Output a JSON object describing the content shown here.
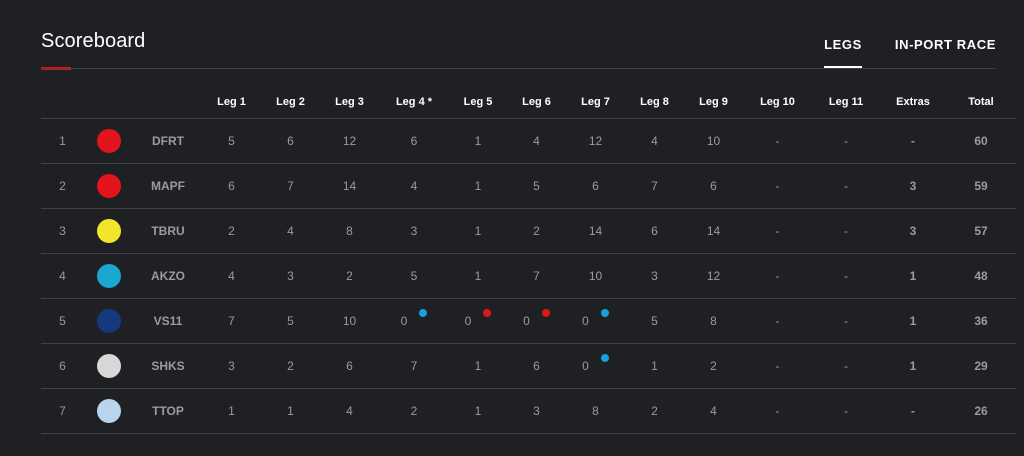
{
  "header": {
    "title": "Scoreboard",
    "tabs": [
      {
        "label": "LEGS",
        "active": true
      },
      {
        "label": "IN-PORT RACE",
        "active": false
      }
    ]
  },
  "columns": [
    "Leg 1",
    "Leg 2",
    "Leg 3",
    "Leg 4 *",
    "Leg 5",
    "Leg 6",
    "Leg 7",
    "Leg 8",
    "Leg 9",
    "Leg 10",
    "Leg 11",
    "Extras",
    "Total"
  ],
  "rows": [
    {
      "pos": "1",
      "team": "DFRT",
      "logo": "dongfeng-logo-icon",
      "legs": [
        "5",
        "6",
        "12",
        "6",
        "1",
        "4",
        "12",
        "4",
        "10",
        "-",
        "-"
      ],
      "dots": [
        null,
        null,
        null,
        null,
        null,
        null,
        null,
        null,
        null,
        null,
        null
      ],
      "extras": "-",
      "total": "60"
    },
    {
      "pos": "2",
      "team": "MAPF",
      "logo": "mapfre-logo-icon",
      "legs": [
        "6",
        "7",
        "14",
        "4",
        "1",
        "5",
        "6",
        "7",
        "6",
        "-",
        "-"
      ],
      "dots": [
        null,
        null,
        null,
        null,
        null,
        null,
        null,
        null,
        null,
        null,
        null
      ],
      "extras": "3",
      "total": "59"
    },
    {
      "pos": "3",
      "team": "TBRU",
      "logo": "brunel-logo-icon",
      "legs": [
        "2",
        "4",
        "8",
        "3",
        "1",
        "2",
        "14",
        "6",
        "14",
        "-",
        "-"
      ],
      "dots": [
        null,
        null,
        null,
        null,
        null,
        null,
        null,
        null,
        null,
        null,
        null
      ],
      "extras": "3",
      "total": "57"
    },
    {
      "pos": "4",
      "team": "AKZO",
      "logo": "akzonobel-logo-icon",
      "legs": [
        "4",
        "3",
        "2",
        "5",
        "1",
        "7",
        "10",
        "3",
        "12",
        "-",
        "-"
      ],
      "dots": [
        null,
        null,
        null,
        null,
        null,
        null,
        null,
        null,
        null,
        null,
        null
      ],
      "extras": "1",
      "total": "48"
    },
    {
      "pos": "5",
      "team": "VS11",
      "logo": "vestas-logo-icon",
      "legs": [
        "7",
        "5",
        "10",
        "0",
        "0",
        "0",
        "0",
        "5",
        "8",
        "-",
        "-"
      ],
      "dots": [
        null,
        null,
        null,
        "blue",
        "red",
        "red",
        "blue",
        null,
        null,
        null,
        null
      ],
      "extras": "1",
      "total": "36"
    },
    {
      "pos": "6",
      "team": "SHKS",
      "logo": "scallywag-logo-icon",
      "legs": [
        "3",
        "2",
        "6",
        "7",
        "1",
        "6",
        "0",
        "1",
        "2",
        "-",
        "-"
      ],
      "dots": [
        null,
        null,
        null,
        null,
        null,
        null,
        "blue",
        null,
        null,
        null,
        null
      ],
      "extras": "1",
      "total": "29"
    },
    {
      "pos": "7",
      "team": "TTOP",
      "logo": "turn-the-tide-logo-icon",
      "legs": [
        "1",
        "1",
        "4",
        "2",
        "1",
        "3",
        "8",
        "2",
        "4",
        "-",
        "-"
      ],
      "dots": [
        null,
        null,
        null,
        null,
        null,
        null,
        null,
        null,
        null,
        null,
        null
      ],
      "extras": "-",
      "total": "26"
    }
  ],
  "colors": {
    "background": "#1f2023",
    "accent_red": "#e3141b",
    "dot_blue": "#1a9fe0",
    "dot_red": "#e3141b",
    "rule": "#3e3f43",
    "muted_text": "#9a9ba0"
  },
  "logo_colors": {
    "dongfeng-logo-icon": "#e3141b",
    "mapfre-logo-icon": "#e3141b",
    "brunel-logo-icon": "#f2e52b",
    "akzonobel-logo-icon": "#19a6cf",
    "vestas-logo-icon": "#16387f",
    "scallywag-logo-icon": "#d8d8d8",
    "turn-the-tide-logo-icon": "#b9d4ee"
  }
}
